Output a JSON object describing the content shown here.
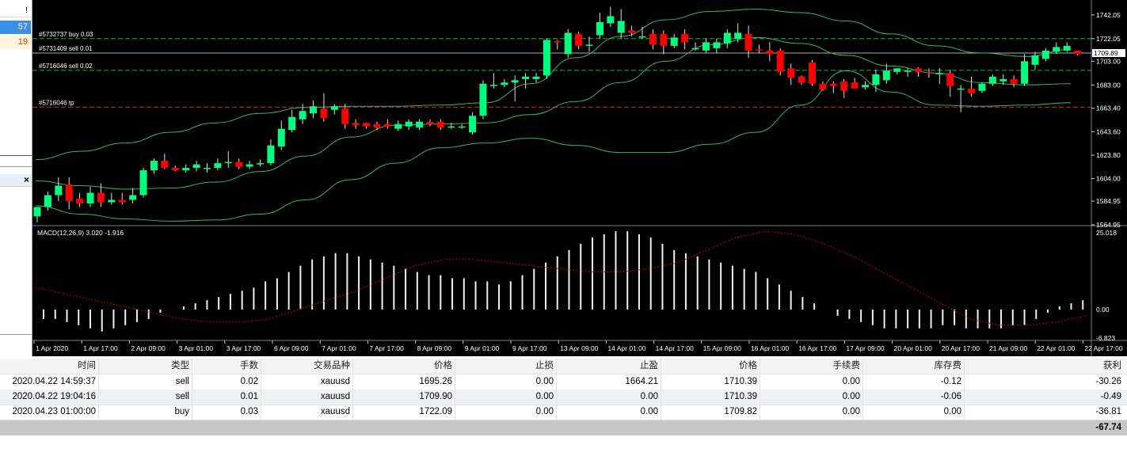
{
  "left_panel": {
    "close_glyph": "!",
    "value_1": "57",
    "value_2": "19",
    "close_x": "×",
    "colors": {
      "value_1_bg": "#3b8fe0",
      "value_2_bg": "#fdf3d8",
      "value_2_text": "#d04000"
    }
  },
  "chart": {
    "price_axis": [
      "1742.05",
      "1722.05",
      "1703.00",
      "1683.00",
      "1663.40",
      "1643.60",
      "1623.80",
      "1604.00",
      "1584.95",
      "1564.95"
    ],
    "current_price": "1709.89",
    "order_lines": [
      {
        "label": "#5732737 buy 0.03",
        "price": 1722.09,
        "color": "#00c040"
      },
      {
        "label": "#5731409 sell 0.01",
        "price": 1709.9,
        "color": "#00c040"
      },
      {
        "label": "#5716046 sell 0.02",
        "price": 1695.26,
        "color": "#00c040"
      },
      {
        "label": "#5716046 tp",
        "price": 1664.21,
        "color": "#e02020"
      }
    ],
    "macd_label": "MACD(12,26,9) 3.020 -1.916",
    "macd_axis": [
      "25.018",
      "0.00",
      "-6.823"
    ],
    "time_axis": [
      "1 Apr 2020",
      "1 Apr 17:00",
      "2 Apr 09:00",
      "3 Apr 01:00",
      "3 Apr 17:00",
      "6 Apr 09:00",
      "7 Apr 01:00",
      "7 Apr 17:00",
      "8 Apr 09:00",
      "9 Apr 01:00",
      "9 Apr 17:00",
      "13 Apr 09:00",
      "14 Apr 01:00",
      "14 Apr 17:00",
      "15 Apr 09:00",
      "16 Apr 01:00",
      "16 Apr 17:00",
      "17 Apr 09:00",
      "20 Apr 01:00",
      "20 Apr 17:00",
      "21 Apr 09:00",
      "22 Apr 01:00",
      "22 Apr 17:00"
    ],
    "colors": {
      "bull": "#00ff7f",
      "bear": "#ff0000",
      "band": "#3cb371",
      "signal": "#d00000",
      "bg": "#000000",
      "axis_text": "#ffffff"
    }
  },
  "chart_data": {
    "type": "candlestick",
    "price_range": [
      1564.95,
      1752
    ],
    "candles": [
      [
        1572,
        1580,
        1580,
        1567
      ],
      [
        1580,
        1590,
        1593,
        1577
      ],
      [
        1590,
        1598,
        1605,
        1585
      ],
      [
        1599,
        1585,
        1605,
        1578
      ],
      [
        1587,
        1583,
        1592,
        1580
      ],
      [
        1583,
        1592,
        1597,
        1580
      ],
      [
        1592,
        1584,
        1600,
        1580
      ],
      [
        1584,
        1586,
        1592,
        1582
      ],
      [
        1586,
        1584,
        1592,
        1582
      ],
      [
        1586,
        1590,
        1596,
        1583
      ],
      [
        1590,
        1611,
        1613,
        1588
      ],
      [
        1611,
        1619,
        1621,
        1608
      ],
      [
        1619,
        1613,
        1625,
        1612
      ],
      [
        1613,
        1611,
        1615,
        1610
      ],
      [
        1611,
        1613,
        1616,
        1609
      ],
      [
        1613,
        1616,
        1619,
        1610
      ],
      [
        1612,
        1613,
        1617,
        1609
      ],
      [
        1613,
        1617,
        1621,
        1611
      ],
      [
        1617,
        1618,
        1627,
        1613
      ],
      [
        1618,
        1614,
        1621,
        1612
      ],
      [
        1614,
        1616,
        1619,
        1612
      ],
      [
        1616,
        1617,
        1620,
        1614
      ],
      [
        1617,
        1632,
        1637,
        1615
      ],
      [
        1631,
        1646,
        1653,
        1628
      ],
      [
        1645,
        1656,
        1662,
        1643
      ],
      [
        1654,
        1661,
        1667,
        1650
      ],
      [
        1659,
        1665,
        1670,
        1655
      ],
      [
        1663,
        1655,
        1676,
        1652
      ],
      [
        1662,
        1665,
        1667,
        1658
      ],
      [
        1663,
        1650,
        1667,
        1646
      ],
      [
        1651,
        1649,
        1654,
        1646
      ],
      [
        1651,
        1648,
        1651,
        1646
      ],
      [
        1650,
        1647,
        1652,
        1645
      ],
      [
        1650,
        1648,
        1654,
        1646
      ],
      [
        1646,
        1650,
        1653,
        1644
      ],
      [
        1648,
        1652,
        1654,
        1645
      ],
      [
        1647,
        1652,
        1654,
        1645
      ],
      [
        1652,
        1650,
        1654,
        1648
      ],
      [
        1652,
        1647,
        1654,
        1645
      ],
      [
        1648,
        1648,
        1651,
        1646
      ],
      [
        1648,
        1648,
        1650,
        1646
      ],
      [
        1643,
        1657,
        1660,
        1641
      ],
      [
        1657,
        1684,
        1687,
        1654
      ],
      [
        1683,
        1683,
        1693,
        1680
      ],
      [
        1683,
        1685,
        1688,
        1681
      ],
      [
        1685,
        1687,
        1691,
        1669
      ],
      [
        1688,
        1690,
        1693,
        1680
      ],
      [
        1688,
        1690,
        1693,
        1685
      ],
      [
        1691,
        1721,
        1722,
        1688
      ],
      [
        1720,
        1719,
        1721,
        1713
      ],
      [
        1709,
        1727,
        1730,
        1706
      ],
      [
        1726,
        1716,
        1728,
        1713
      ],
      [
        1716,
        1717,
        1724,
        1711
      ],
      [
        1725,
        1736,
        1744,
        1722
      ],
      [
        1735,
        1741,
        1749,
        1732
      ],
      [
        1727,
        1737,
        1747,
        1722
      ],
      [
        1729,
        1727,
        1733,
        1724
      ],
      [
        1724,
        1724,
        1732,
        1722
      ],
      [
        1726,
        1717,
        1730,
        1713
      ],
      [
        1726,
        1716,
        1729,
        1709
      ],
      [
        1716,
        1723,
        1726,
        1714
      ],
      [
        1726,
        1719,
        1730,
        1713
      ],
      [
        1714,
        1714,
        1719,
        1712
      ],
      [
        1712,
        1719,
        1722,
        1710
      ],
      [
        1714,
        1719,
        1722,
        1710
      ],
      [
        1718,
        1727,
        1730,
        1714
      ],
      [
        1722,
        1727,
        1735,
        1719
      ],
      [
        1726,
        1712,
        1733,
        1706
      ],
      [
        1713,
        1712,
        1717,
        1710
      ],
      [
        1712,
        1709,
        1719,
        1703
      ],
      [
        1712,
        1694,
        1714,
        1691
      ],
      [
        1697,
        1689,
        1701,
        1683
      ],
      [
        1690,
        1685,
        1691,
        1683
      ],
      [
        1702,
        1684,
        1704,
        1682
      ],
      [
        1684,
        1679,
        1686,
        1678
      ],
      [
        1684,
        1682,
        1686,
        1676
      ],
      [
        1686,
        1678,
        1688,
        1672
      ],
      [
        1685,
        1680,
        1689,
        1680
      ],
      [
        1681,
        1683,
        1686,
        1679
      ],
      [
        1683,
        1692,
        1696,
        1677
      ],
      [
        1687,
        1695,
        1701,
        1684
      ],
      [
        1694,
        1697,
        1697,
        1692
      ],
      [
        1694,
        1695,
        1697,
        1690
      ],
      [
        1697,
        1694,
        1698,
        1690
      ],
      [
        1694,
        1693,
        1697,
        1689
      ],
      [
        1693,
        1693,
        1697,
        1684
      ],
      [
        1693,
        1682,
        1696,
        1673
      ],
      [
        1680,
        1680,
        1683,
        1660
      ],
      [
        1680,
        1676,
        1690,
        1673
      ],
      [
        1678,
        1684,
        1685,
        1676
      ],
      [
        1684,
        1690,
        1692,
        1682
      ],
      [
        1686,
        1688,
        1692,
        1683
      ],
      [
        1688,
        1684,
        1691,
        1681
      ],
      [
        1684,
        1703,
        1709,
        1682
      ],
      [
        1700,
        1708,
        1711,
        1696
      ],
      [
        1705,
        1712,
        1714,
        1703
      ],
      [
        1711,
        1715,
        1719,
        1709
      ],
      [
        1712,
        1716,
        1719,
        1711
      ],
      [
        1712,
        1709,
        1712,
        1708
      ]
    ],
    "bollinger": {
      "upper": [
        1620,
        1627,
        1634,
        1643,
        1651,
        1659,
        1664,
        1665,
        1665,
        1666,
        1668,
        1684,
        1706,
        1724,
        1738,
        1745,
        1747,
        1744,
        1737,
        1726,
        1716,
        1710,
        1707,
        1713
      ],
      "mid": [
        1602,
        1598,
        1595,
        1596,
        1601,
        1610,
        1623,
        1639,
        1649,
        1650,
        1651,
        1658,
        1669,
        1685,
        1703,
        1717,
        1723,
        1718,
        1708,
        1699,
        1693,
        1685,
        1683,
        1684
      ],
      "lower": [
        1581,
        1574,
        1570,
        1568,
        1569,
        1574,
        1586,
        1603,
        1617,
        1630,
        1634,
        1638,
        1632,
        1626,
        1626,
        1633,
        1643,
        1666,
        1695,
        1677,
        1666,
        1665,
        1666,
        1668
      ]
    },
    "macd": {
      "range": [
        -6.823,
        25.018
      ],
      "histogram": [
        -3,
        -3,
        -4,
        -5,
        -6,
        -7,
        -6,
        -5,
        -4,
        -3,
        -1,
        0,
        1,
        2,
        3,
        4,
        5,
        6,
        7,
        9,
        10,
        12,
        14,
        16,
        17,
        18,
        18,
        17,
        16,
        15,
        14,
        13,
        12,
        11,
        11,
        10,
        10,
        9,
        9,
        8,
        9,
        11,
        13,
        15,
        17,
        19,
        21,
        23,
        24,
        25,
        25,
        24,
        23,
        21,
        19,
        18,
        17,
        16,
        15,
        14,
        13,
        12,
        10,
        8,
        6,
        4,
        2,
        0,
        -2,
        -3,
        -4,
        -5,
        -6,
        -6,
        -6,
        -6,
        -6,
        -5,
        -5,
        -6,
        -6,
        -6,
        -6,
        -5,
        -5,
        -3,
        -1,
        1,
        2,
        3
      ],
      "signal": [
        7,
        5,
        3,
        1,
        -1,
        -3,
        -4,
        -4,
        -3,
        0,
        3,
        6,
        10,
        14,
        16,
        16,
        15,
        14,
        13,
        12,
        12,
        13,
        15,
        19,
        23,
        25,
        24,
        21,
        17,
        12,
        7,
        2,
        -3,
        -5,
        -5,
        -4,
        -2
      ]
    }
  },
  "table": {
    "headers": [
      "时间",
      "类型",
      "手数",
      "交易品种",
      "价格",
      "止损",
      "止盈",
      "价格",
      "手续费",
      "库存费",
      "获利"
    ],
    "rows": [
      [
        "2020.04.22 14:59:37",
        "sell",
        "0.02",
        "xauusd",
        "1695.26",
        "0.00",
        "1664.21",
        "1710.39",
        "0.00",
        "-0.12",
        "-30.26"
      ],
      [
        "2020.04.22 19:04:16",
        "sell",
        "0.01",
        "xauusd",
        "1709.90",
        "0.00",
        "0.00",
        "1710.39",
        "0.00",
        "-0.06",
        "-0.49"
      ],
      [
        "2020.04.23 01:00:00",
        "buy",
        "0.03",
        "xauusd",
        "1722.09",
        "0.00",
        "0.00",
        "1709.82",
        "0.00",
        "0.00",
        "-36.81"
      ]
    ],
    "total": "-67.74"
  }
}
